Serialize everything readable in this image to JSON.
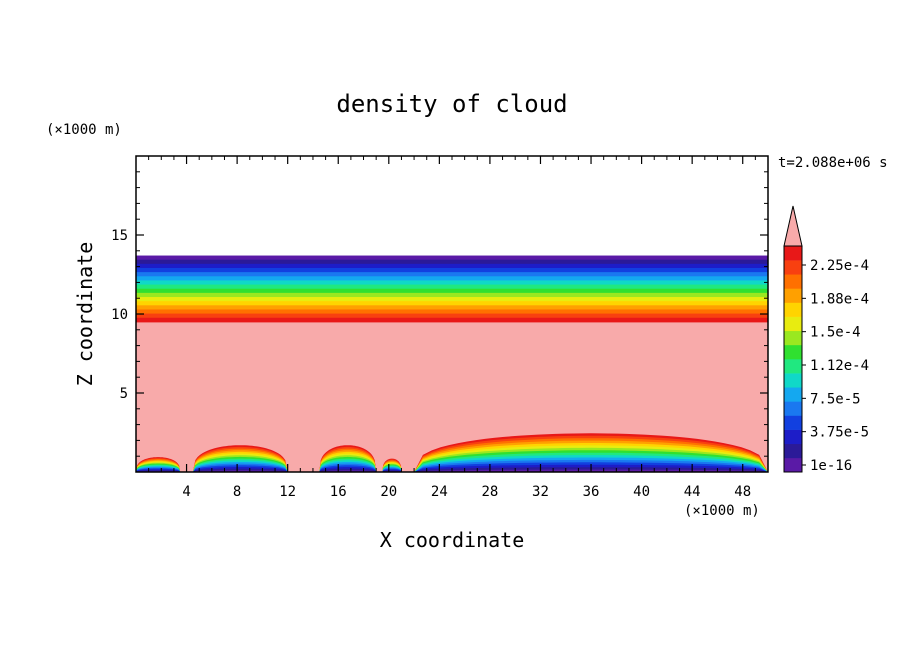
{
  "chart_data": {
    "type": "heatmap",
    "title": "density of cloud",
    "xlabel": "X coordinate",
    "ylabel": "Z coordinate",
    "x_unit": "(×1000 m)",
    "y_unit": "(×1000 m)",
    "time_label": "t=2.088e+06 s",
    "xlim": [
      0,
      50
    ],
    "ylim": [
      0,
      20
    ],
    "x_ticks": [
      4,
      8,
      12,
      16,
      20,
      24,
      28,
      32,
      36,
      40,
      44,
      48
    ],
    "y_ticks": [
      5,
      10,
      15
    ],
    "colorbar": {
      "labels": [
        "2.25e-4",
        "1.88e-4",
        "1.5e-4",
        "1.12e-4",
        "7.5e-5",
        "3.75e-5",
        "1e-16"
      ],
      "levels_bottom_to_top": [
        "#5a1aa6",
        "#2b1a98",
        "#1d1dc8",
        "#1240e0",
        "#1a78f0",
        "#14a8f0",
        "#10d8c8",
        "#20e880",
        "#30e030",
        "#9ae820",
        "#e8ec10",
        "#ffd400",
        "#ffa000",
        "#ff7000",
        "#f84010",
        "#e81818"
      ],
      "over_color": "#f8aaaa"
    },
    "fields": {
      "upper_layer_base_z": 9.5,
      "upper_layer_top_z": 13.7,
      "interior_color": "#f8aaaa",
      "surface_mounds": [
        {
          "x_start": 0,
          "x_end": 3.5,
          "peak_z": 1.0
        },
        {
          "x_start": 4.5,
          "x_end": 12,
          "peak_z": 1.8
        },
        {
          "x_start": 14.5,
          "x_end": 19,
          "peak_z": 1.8
        },
        {
          "x_start": 19.5,
          "x_end": 21,
          "peak_z": 0.9
        },
        {
          "x_start": 22,
          "x_end": 50,
          "peak_z": 2.6
        }
      ]
    }
  }
}
